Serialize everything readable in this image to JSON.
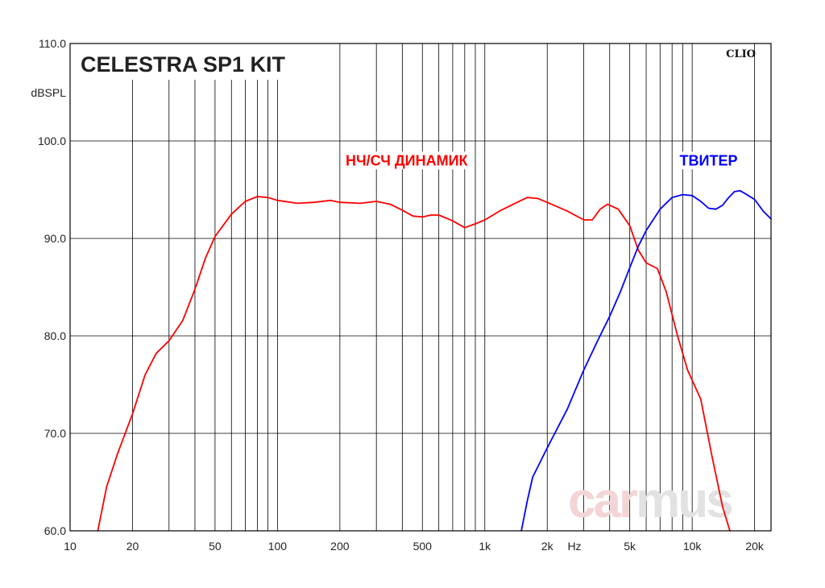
{
  "chart_data": {
    "type": "line",
    "title": "CELESTRA SP1 KIT",
    "brand": "CLIO",
    "watermark": "carmus",
    "ylabel": "dBSPL",
    "xunit": "Hz",
    "xscale": "log",
    "xlim": [
      10,
      24000
    ],
    "ylim": [
      60,
      110
    ],
    "grid": true,
    "x_tick_labels": [
      {
        "value": 10,
        "label": "10"
      },
      {
        "value": 20,
        "label": "20"
      },
      {
        "value": 50,
        "label": "50"
      },
      {
        "value": 100,
        "label": "100"
      },
      {
        "value": 200,
        "label": "200"
      },
      {
        "value": 500,
        "label": "500"
      },
      {
        "value": 1000,
        "label": "1k"
      },
      {
        "value": 2000,
        "label": "2k"
      },
      {
        "value": 5000,
        "label": "5k"
      },
      {
        "value": 10000,
        "label": "10k"
      },
      {
        "value": 20000,
        "label": "20k"
      }
    ],
    "y_tick_labels": [
      {
        "value": 60,
        "label": "60.0"
      },
      {
        "value": 70,
        "label": "70.0"
      },
      {
        "value": 80,
        "label": "80.0"
      },
      {
        "value": 90,
        "label": "90.0"
      },
      {
        "value": 100,
        "label": "100.0"
      },
      {
        "value": 110,
        "label": "110.0"
      }
    ],
    "minor_gridlines_x": [
      30,
      40,
      60,
      70,
      80,
      90,
      300,
      400,
      600,
      700,
      800,
      900,
      3000,
      4000,
      6000,
      7000,
      8000,
      9000
    ],
    "series": [
      {
        "name": "НЧ/СЧ ДИНАМИК",
        "color": "#ff0000",
        "label_at": [
          420,
          97.5
        ],
        "points": [
          [
            13.6,
            60.0
          ],
          [
            15,
            64.5
          ],
          [
            17,
            68.0
          ],
          [
            20,
            72.0
          ],
          [
            23,
            76.0
          ],
          [
            26,
            78.2
          ],
          [
            30,
            79.5
          ],
          [
            35,
            81.6
          ],
          [
            40,
            84.8
          ],
          [
            45,
            88.0
          ],
          [
            50,
            90.2
          ],
          [
            60,
            92.5
          ],
          [
            70,
            93.8
          ],
          [
            80,
            94.3
          ],
          [
            90,
            94.2
          ],
          [
            100,
            93.9
          ],
          [
            125,
            93.6
          ],
          [
            150,
            93.7
          ],
          [
            180,
            93.9
          ],
          [
            200,
            93.7
          ],
          [
            250,
            93.6
          ],
          [
            300,
            93.8
          ],
          [
            350,
            93.5
          ],
          [
            400,
            92.9
          ],
          [
            450,
            92.3
          ],
          [
            500,
            92.2
          ],
          [
            550,
            92.4
          ],
          [
            600,
            92.4
          ],
          [
            700,
            91.8
          ],
          [
            800,
            91.1
          ],
          [
            900,
            91.5
          ],
          [
            1000,
            91.9
          ],
          [
            1200,
            92.9
          ],
          [
            1400,
            93.6
          ],
          [
            1600,
            94.2
          ],
          [
            1800,
            94.1
          ],
          [
            2000,
            93.7
          ],
          [
            2500,
            92.8
          ],
          [
            3000,
            91.9
          ],
          [
            3300,
            91.9
          ],
          [
            3600,
            93.0
          ],
          [
            3900,
            93.5
          ],
          [
            4400,
            93.0
          ],
          [
            5000,
            91.3
          ],
          [
            5500,
            88.8
          ],
          [
            6000,
            87.5
          ],
          [
            6800,
            86.9
          ],
          [
            7500,
            84.5
          ],
          [
            8500,
            80.0
          ],
          [
            9500,
            76.5
          ],
          [
            11000,
            73.5
          ],
          [
            12500,
            67.5
          ],
          [
            14000,
            62.5
          ],
          [
            15200,
            60.0
          ]
        ]
      },
      {
        "name": "ТВИТЕР",
        "color": "#0000ff",
        "label_at": [
          12000,
          97.5
        ],
        "points": [
          [
            1500,
            60.0
          ],
          [
            1600,
            63.0
          ],
          [
            1700,
            65.5
          ],
          [
            2000,
            68.5
          ],
          [
            2500,
            72.5
          ],
          [
            3000,
            76.5
          ],
          [
            3500,
            79.5
          ],
          [
            4000,
            82.0
          ],
          [
            4500,
            84.5
          ],
          [
            5000,
            87.0
          ],
          [
            5500,
            89.2
          ],
          [
            6000,
            90.8
          ],
          [
            7000,
            93.0
          ],
          [
            8000,
            94.2
          ],
          [
            9000,
            94.5
          ],
          [
            10000,
            94.4
          ],
          [
            11000,
            93.8
          ],
          [
            12000,
            93.1
          ],
          [
            13000,
            93.0
          ],
          [
            14000,
            93.4
          ],
          [
            15000,
            94.2
          ],
          [
            16000,
            94.8
          ],
          [
            17000,
            94.9
          ],
          [
            18000,
            94.6
          ],
          [
            20000,
            94.0
          ],
          [
            22000,
            92.8
          ],
          [
            24000,
            92.0
          ]
        ]
      }
    ]
  }
}
